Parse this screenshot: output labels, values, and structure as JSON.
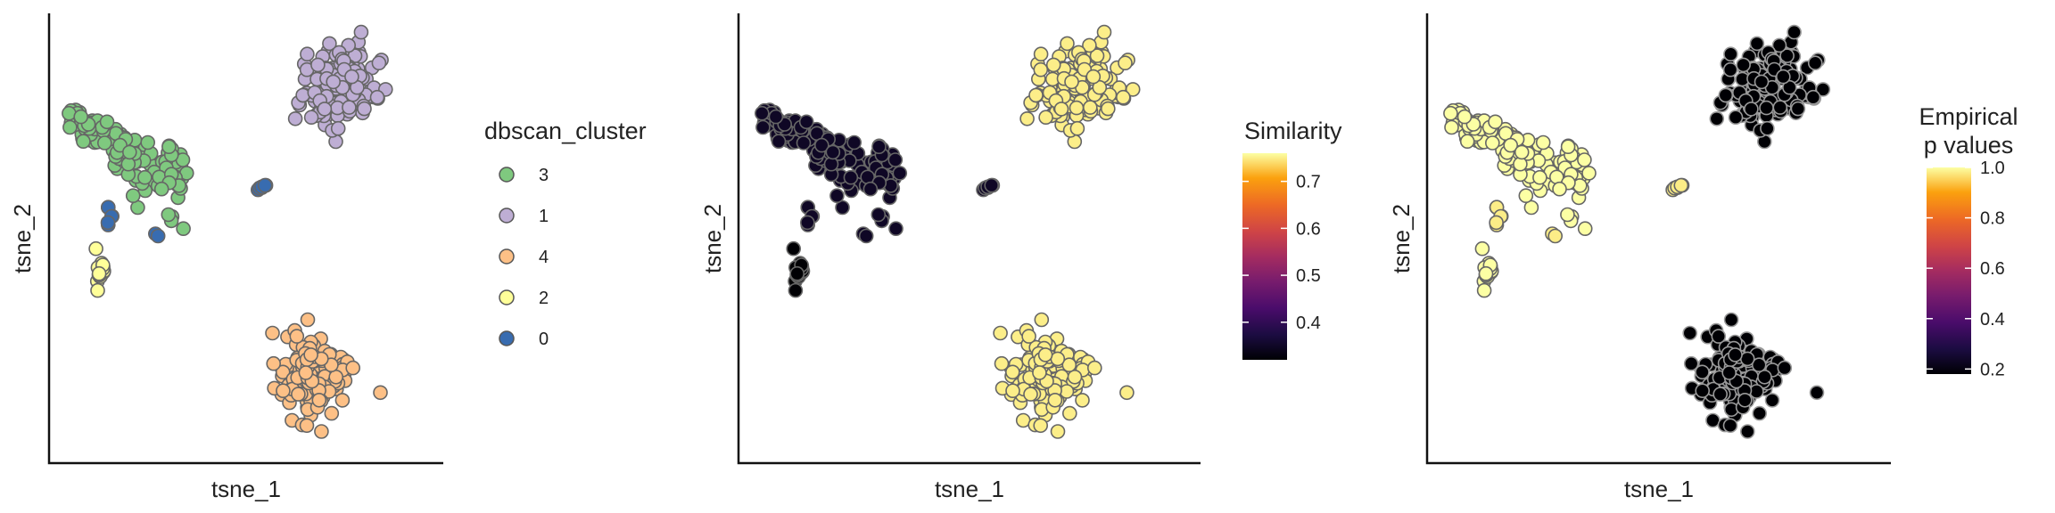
{
  "chart_data": [
    {
      "type": "scatter",
      "xlabel": "tsne_1",
      "ylabel": "tsne_2",
      "color_by": "dbscan_cluster",
      "legend": {
        "title": "dbscan_cluster",
        "kind": "categorical",
        "entries": [
          {
            "label": "3",
            "color": "#7fc97f"
          },
          {
            "label": "1",
            "color": "#beaed4"
          },
          {
            "label": "4",
            "color": "#fdc086"
          },
          {
            "label": "2",
            "color": "#ffff99"
          },
          {
            "label": "0",
            "color": "#386cb0"
          }
        ]
      },
      "xlim": [
        0,
        100
      ],
      "ylim": [
        0,
        100
      ],
      "clusters": [
        {
          "id": "3",
          "color": "#7fc97f",
          "shape": "triangle",
          "n": 150,
          "x_range": [
            5,
            35
          ],
          "y_range": [
            55,
            80
          ]
        },
        {
          "id": "1",
          "color": "#beaed4",
          "shape": "blob",
          "n": 150,
          "center": [
            73,
            84
          ],
          "spread": [
            8,
            7
          ]
        },
        {
          "id": "4",
          "color": "#fdc086",
          "shape": "blob",
          "n": 150,
          "center": [
            67,
            19
          ],
          "spread": [
            7,
            8
          ]
        },
        {
          "id": "2",
          "color": "#ffff99",
          "shape": "blob",
          "n": 18,
          "center": [
            13,
            43
          ],
          "spread": [
            1.2,
            3
          ]
        },
        {
          "id": "0",
          "color": "#386cb0",
          "shape": "mixed",
          "n": 14,
          "points": [
            [
              15,
              57
            ],
            [
              16,
              55
            ],
            [
              15,
              53
            ],
            [
              27,
              51
            ],
            [
              53,
              61
            ],
            [
              54,
              61.5
            ],
            [
              55,
              62
            ]
          ]
        }
      ]
    },
    {
      "type": "scatter",
      "xlabel": "tsne_1",
      "ylabel": "tsne_2",
      "color_by": "Similarity",
      "legend": {
        "title": "Similarity",
        "kind": "continuous",
        "range": [
          0.32,
          0.76
        ],
        "ticks": [
          0.4,
          0.5,
          0.6,
          0.7
        ],
        "colormap": "inferno"
      },
      "xlim": [
        0,
        100
      ],
      "ylim": [
        0,
        100
      ],
      "cluster_values": {
        "3": 0.35,
        "1": 0.75,
        "4": 0.75,
        "2": 0.32,
        "0": 0.35
      }
    },
    {
      "type": "scatter",
      "xlabel": "tsne_1",
      "ylabel": "tsne_2",
      "color_by": "Empirical p values",
      "legend": {
        "title": [
          "Empirical",
          "p values"
        ],
        "kind": "continuous",
        "range": [
          0.18,
          1.0
        ],
        "ticks": [
          0.2,
          0.4,
          0.6,
          0.8,
          1.0
        ],
        "colormap": "inferno"
      },
      "xlim": [
        0,
        100
      ],
      "ylim": [
        0,
        100
      ],
      "cluster_values": {
        "3": 1.0,
        "1": 0.18,
        "4": 0.18,
        "2": 1.0,
        "0": 0.98
      }
    }
  ]
}
